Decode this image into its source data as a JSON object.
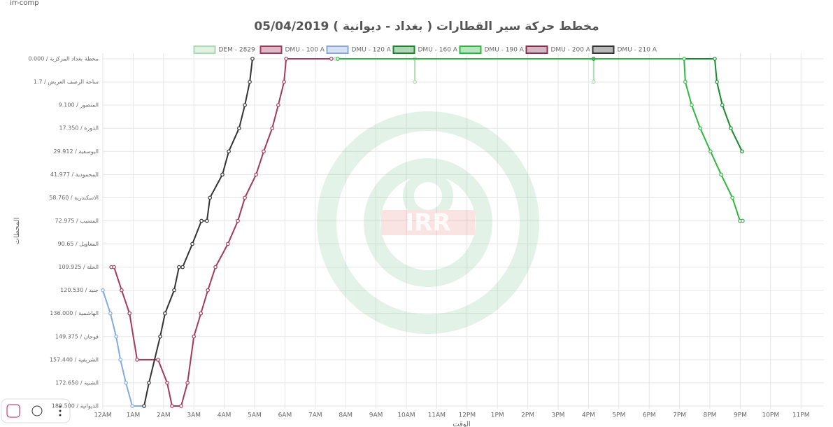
{
  "tab_label": "irr-comp",
  "chart_data": {
    "type": "line",
    "title": "مخطط حركة سير القطارات  (  بغداد - ديوانية  )  05/04/2019",
    "x_label": "الوقت",
    "y_label": "المحطات",
    "watermark": "IRR",
    "y_reversed": true,
    "grid": true,
    "legend": "top",
    "xlim": [
      0,
      23.75
    ],
    "xticks": [
      {
        "value": 0,
        "label": "12AM"
      },
      {
        "value": 1,
        "label": "1AM"
      },
      {
        "value": 2,
        "label": "2AM"
      },
      {
        "value": 3,
        "label": "3AM"
      },
      {
        "value": 4,
        "label": "4AM"
      },
      {
        "value": 5,
        "label": "5AM"
      },
      {
        "value": 6,
        "label": "6AM"
      },
      {
        "value": 7,
        "label": "7AM"
      },
      {
        "value": 8,
        "label": "8AM"
      },
      {
        "value": 9,
        "label": "9AM"
      },
      {
        "value": 10,
        "label": "10AM"
      },
      {
        "value": 11,
        "label": "11AM"
      },
      {
        "value": 12,
        "label": "12PM"
      },
      {
        "value": 13,
        "label": "1PM"
      },
      {
        "value": 14,
        "label": "2PM"
      },
      {
        "value": 15,
        "label": "3PM"
      },
      {
        "value": 16,
        "label": "4PM"
      },
      {
        "value": 17,
        "label": "5PM"
      },
      {
        "value": 18,
        "label": "6PM"
      },
      {
        "value": 19,
        "label": "7PM"
      },
      {
        "value": 20,
        "label": "8PM"
      },
      {
        "value": 21,
        "label": "9PM"
      },
      {
        "value": 22,
        "label": "10PM"
      },
      {
        "value": 23,
        "label": "11PM"
      }
    ],
    "ylim": [
      0,
      15
    ],
    "yticks": [
      {
        "value": 0,
        "label": "محطة بغداد المركزية  /  0.000"
      },
      {
        "value": 1,
        "label": "ساحة الرصف العريض  /  1.7"
      },
      {
        "value": 2,
        "label": "المنصور  /  9.100"
      },
      {
        "value": 3,
        "label": "الدورة  /  17.350"
      },
      {
        "value": 4,
        "label": "اليوسفية  /  29.912"
      },
      {
        "value": 5,
        "label": "المحمودية  /  41.977"
      },
      {
        "value": 6,
        "label": "الاسكندرية  /  58.760"
      },
      {
        "value": 7,
        "label": "المسيب  /  72.975"
      },
      {
        "value": 8,
        "label": "المعاويل  /  90.65"
      },
      {
        "value": 9,
        "label": "الحلة  /  109.925"
      },
      {
        "value": 10,
        "label": "جنيد  /  120.530"
      },
      {
        "value": 11,
        "label": "الهاشمية  /  136.000"
      },
      {
        "value": 12,
        "label": "قوجان  /  149.375"
      },
      {
        "value": 13,
        "label": "الشريفية  /  157.440"
      },
      {
        "value": 14,
        "label": "الشنية  /  172.650"
      },
      {
        "value": 15,
        "label": "الديوانية  /  189.500"
      }
    ],
    "series": [
      {
        "name": "DEM - 2829",
        "color": "#a8dbb0",
        "x": [
          7.67,
          10.28,
          10.28,
          null,
          10.28,
          16.17,
          16.17
        ],
        "values": [
          0,
          0,
          1,
          null,
          0,
          0,
          1
        ]
      },
      {
        "name": "DMU - 100 A",
        "color": "#a33a5c",
        "x": [
          0.28,
          0.37,
          0.62,
          0.88,
          1.13,
          1.82,
          2.12,
          2.28,
          2.58,
          2.79,
          3.0,
          3.23,
          3.46,
          3.71,
          4.12,
          4.45,
          4.68,
          5.05,
          5.3,
          5.58,
          5.78,
          5.97,
          6.04,
          7.53
        ],
        "values": [
          9,
          9,
          10,
          11,
          13,
          13,
          14,
          15,
          15,
          14,
          12,
          11,
          10,
          9,
          8,
          7,
          6,
          5,
          4,
          3,
          2,
          1,
          0,
          0
        ]
      },
      {
        "name": "DMU - 120 A",
        "color": "#86aadf",
        "x": [
          0,
          0.25,
          0.44,
          0.58,
          0.76,
          0.97,
          1.36
        ],
        "values": [
          10,
          11,
          12,
          13,
          14,
          15,
          15
        ]
      },
      {
        "name": "DMU - 160 A",
        "color": "#178a2b",
        "x": [
          16.17,
          20.16,
          20.23,
          20.41,
          20.69,
          21.06
        ],
        "values": [
          0,
          0,
          1,
          2,
          3,
          4
        ]
      },
      {
        "name": "DMU - 190 A",
        "color": "#2fb83f",
        "x": [
          7.74,
          19.15,
          19.19,
          19.4,
          19.68,
          20.02,
          20.37,
          20.74,
          20.99,
          21.08
        ],
        "values": [
          0,
          0,
          1,
          2,
          3,
          4,
          5,
          6,
          7,
          7
        ]
      },
      {
        "name": "DMU - 200 A",
        "color": "#8c2d55",
        "x": [],
        "values": []
      },
      {
        "name": "DMU - 210 A",
        "color": "#333333",
        "x": [
          1.36,
          1.52,
          1.89,
          2.05,
          2.35,
          2.51,
          2.63,
          2.95,
          3.25,
          3.43,
          3.53,
          3.94,
          4.15,
          4.49,
          4.68,
          4.84,
          4.93
        ],
        "values": [
          15,
          14,
          12,
          11,
          10,
          9,
          9,
          8,
          7,
          7,
          6,
          5,
          4,
          3,
          2,
          1,
          0
        ]
      }
    ]
  }
}
